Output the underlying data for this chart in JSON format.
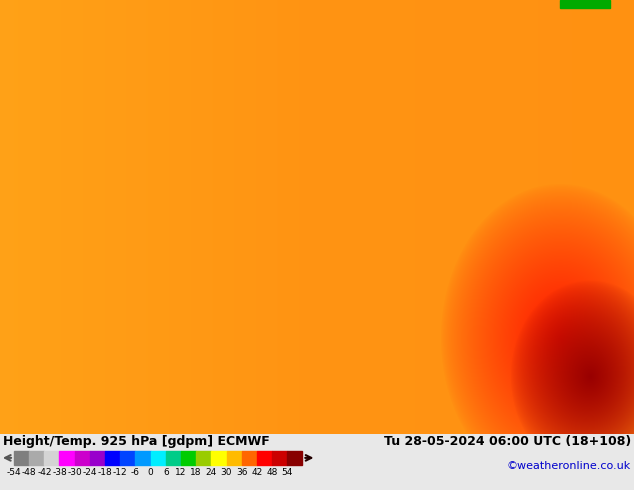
{
  "title_left": "Height/Temp. 925 hPa [gdpm] ECMWF",
  "title_right": "Tu 28-05-2024 06:00 UTC (18+108)",
  "credit": "©weatheronline.co.uk",
  "colorbar_label_values": [
    "-54",
    "-48",
    "-42",
    "-38",
    "-30",
    "-24",
    "-18",
    "-12",
    "-6",
    "0",
    "6",
    "12",
    "18",
    "24",
    "30",
    "36",
    "42",
    "48",
    "54"
  ],
  "colorbar_colors": [
    "#7f7f7f",
    "#aaaaaa",
    "#d4d4d4",
    "#ff00ff",
    "#cc00cc",
    "#9900cc",
    "#0000ff",
    "#0044ff",
    "#0099ff",
    "#00eeff",
    "#00cc88",
    "#00cc00",
    "#99cc00",
    "#ffff00",
    "#ffbb00",
    "#ff6600",
    "#ff0000",
    "#cc0000",
    "#880000"
  ],
  "bg_color": "#e8e8e8",
  "map_orange_light": "#ffcc66",
  "map_orange_mid": "#ff9900",
  "map_orange_dark": "#ff6600",
  "map_red": "#ff2200",
  "map_dark_red": "#cc0000",
  "map_deepred": "#880000",
  "green_bar_color": "#00aa00",
  "bottom_bg": "#e0e0e0",
  "title_fontsize": 9.0,
  "credit_fontsize": 8,
  "colorbar_tick_fontsize": 6.5
}
